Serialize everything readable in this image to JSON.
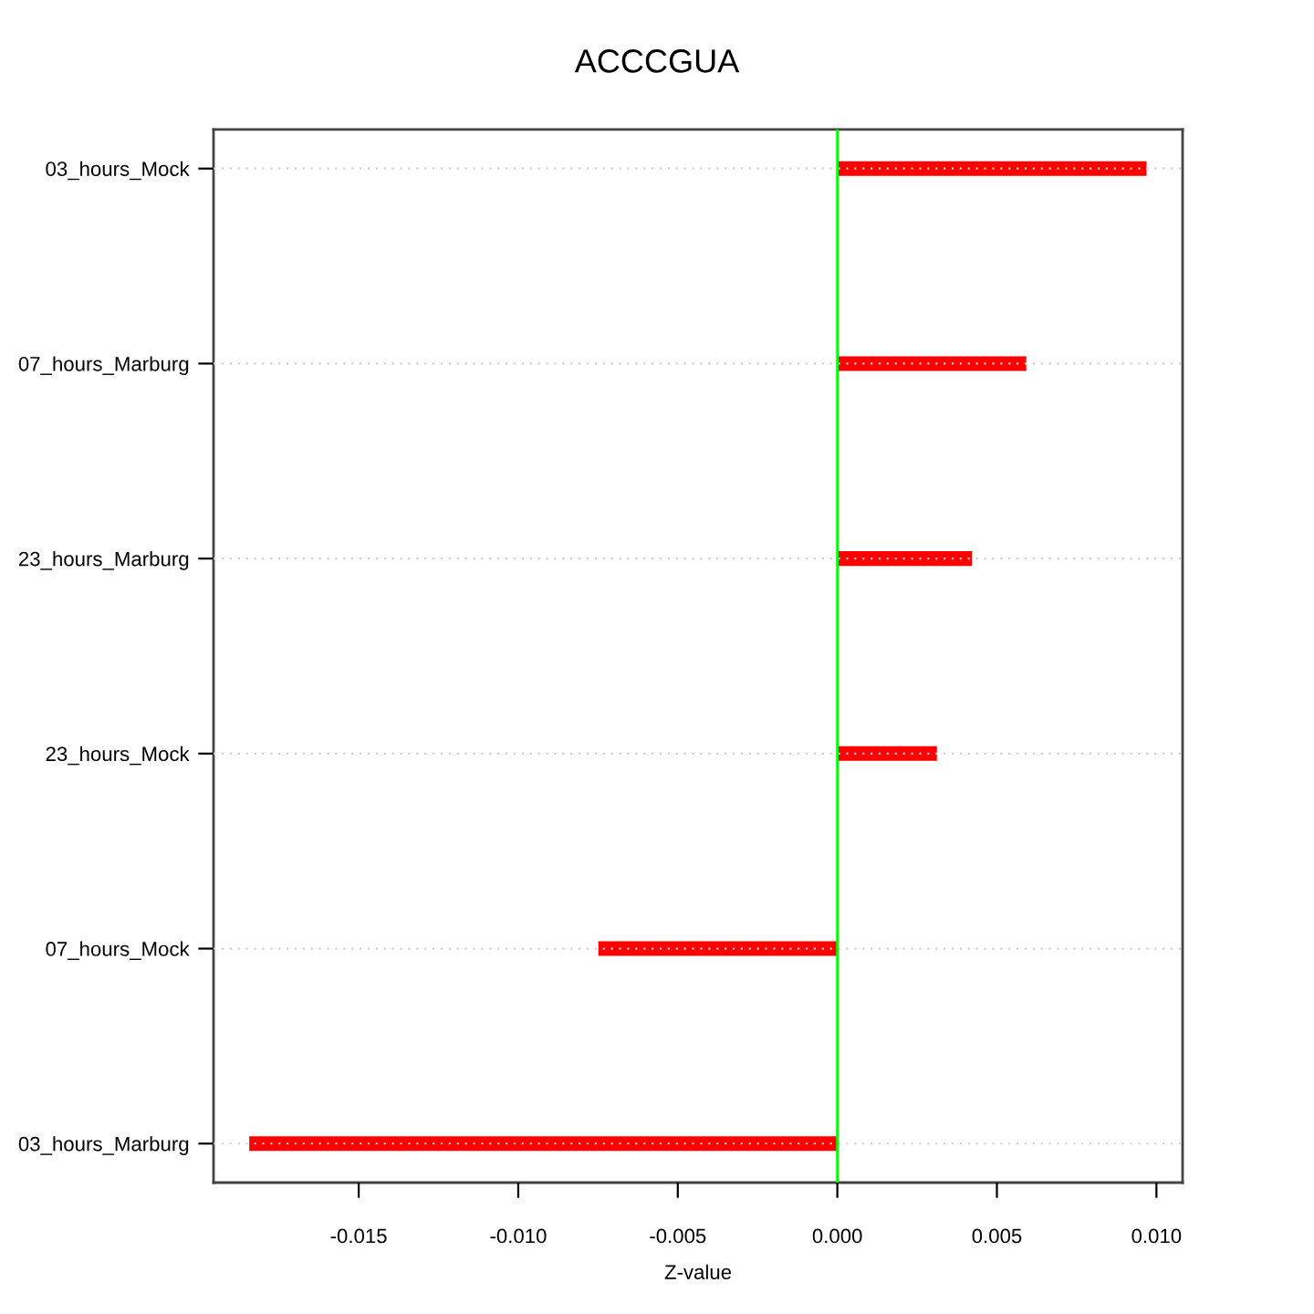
{
  "chart_data": {
    "type": "bar",
    "orientation": "horizontal",
    "title": "ACCCGUA",
    "xlabel": "Z-value",
    "categories": [
      "03_hours_Mock",
      "07_hours_Marburg",
      "23_hours_Marburg",
      "23_hours_Mock",
      "07_hours_Mock",
      "03_hours_Marburg"
    ],
    "values": [
      0.00969,
      0.00592,
      0.00422,
      0.00312,
      -0.00749,
      -0.01843
    ],
    "color": "#ff0000",
    "xlim": [
      -0.01955,
      0.01082
    ],
    "xticks": [
      {
        "value": -0.015,
        "label": "-0.015"
      },
      {
        "value": -0.01,
        "label": "-0.010"
      },
      {
        "value": -0.005,
        "label": "-0.005"
      },
      {
        "value": 0,
        "label": "0.000"
      },
      {
        "value": 0.005,
        "label": "0.005"
      },
      {
        "value": 0.01,
        "label": "0.010"
      }
    ],
    "ref_lines": [
      {
        "axis": "x",
        "value": 0,
        "color": "#00ff00"
      }
    ],
    "grid": "y"
  }
}
